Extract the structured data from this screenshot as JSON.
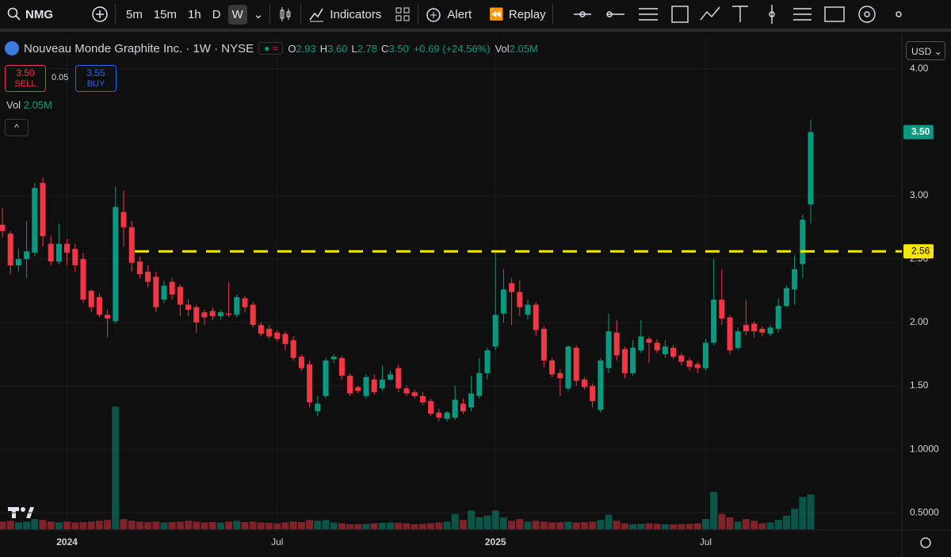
{
  "toolbar": {
    "symbol": "NMG",
    "intervals": [
      "5m",
      "15m",
      "1h",
      "D",
      "W"
    ],
    "indicators": "Indicators",
    "alert": "Alert",
    "replay": "Replay"
  },
  "header": {
    "title": "Nouveau Monde Graphite Inc. · 1W · NYSE",
    "ohlc": [
      {
        "key": "O",
        "value": "2.93"
      },
      {
        "key": "H",
        "value": "3.60"
      },
      {
        "key": "L",
        "value": "2.78"
      },
      {
        "key": "C",
        "value": "3.50"
      }
    ],
    "change": "+0.69 (+24.56%)",
    "vol_key": "Vol",
    "vol": "2.05M"
  },
  "trade": {
    "sell_price": "3.50",
    "sell": "SELL",
    "spread": "0.05",
    "buy_price": "3.55",
    "buy": "BUY"
  },
  "volume_legend": {
    "key": "Vol",
    "value": "2.05M"
  },
  "currency": "USD",
  "chart_data": {
    "type": "candlestick",
    "categories": [
      null,
      null,
      null,
      null,
      null,
      null,
      null,
      null,
      "2024",
      null,
      null,
      null,
      null,
      null,
      null,
      null,
      null,
      null,
      null,
      null,
      null,
      null,
      null,
      null,
      null,
      null,
      null,
      null,
      null,
      null,
      null,
      null,
      null,
      null,
      "Jul",
      null,
      null,
      null,
      null,
      null,
      null,
      null,
      null,
      null,
      null,
      null,
      null,
      null,
      null,
      null,
      null,
      null,
      null,
      null,
      null,
      null,
      null,
      null,
      null,
      null,
      null,
      "2025",
      null,
      null,
      null,
      null,
      null,
      null,
      null,
      null,
      null,
      null,
      null,
      null,
      null,
      null,
      null,
      null,
      null,
      null,
      null,
      null,
      null,
      null,
      null,
      null,
      null,
      "Jul",
      null,
      null,
      null,
      null,
      null,
      null,
      null,
      null,
      null,
      null,
      null,
      null,
      null
    ],
    "open": [
      2.77,
      2.7,
      2.45,
      2.5,
      2.55,
      3.1,
      2.62,
      2.48,
      2.62,
      2.58,
      2.5,
      2.25,
      2.2,
      2.06,
      2.01,
      2.87,
      2.75,
      2.48,
      2.4,
      2.36,
      2.18,
      2.32,
      2.28,
      2.14,
      2.12,
      2.08,
      2.09,
      2.05,
      2.07,
      2.06,
      2.19,
      2.14,
      1.98,
      1.95,
      1.92,
      1.91,
      1.86,
      1.73,
      1.67,
      1.3,
      1.42,
      1.71,
      1.72,
      1.58,
      1.49,
      1.42,
      1.55,
      1.48,
      1.55,
      1.64,
      1.48,
      1.45,
      1.42,
      1.38,
      1.29,
      1.24,
      1.25,
      1.36,
      1.33,
      1.42,
      1.6,
      1.81,
      2.07,
      2.31,
      2.24,
      2.06,
      2.14,
      1.95,
      1.7,
      1.6,
      1.48,
      1.8,
      1.55,
      1.5,
      1.31,
      1.64,
      1.92,
      1.79,
      1.6,
      1.78,
      1.87,
      1.84,
      1.75,
      1.8,
      1.74,
      1.7,
      1.67,
      1.64,
      1.84,
      2.18,
      2.04,
      1.8,
      1.98,
      1.99,
      1.95,
      1.91,
      1.95,
      2.13,
      2.26,
      2.46,
      2.93
    ],
    "high": [
      2.9,
      2.72,
      2.58,
      2.8,
      3.1,
      3.14,
      2.68,
      2.78,
      2.66,
      2.62,
      2.55,
      2.26,
      2.23,
      2.1,
      3.07,
      3.04,
      2.8,
      2.52,
      2.45,
      2.4,
      2.33,
      2.35,
      2.3,
      2.18,
      2.14,
      2.1,
      2.12,
      2.1,
      2.32,
      2.22,
      2.21,
      2.16,
      2.0,
      1.98,
      1.94,
      1.93,
      1.89,
      1.75,
      1.7,
      1.42,
      1.72,
      1.75,
      1.74,
      1.6,
      1.5,
      1.59,
      1.59,
      1.66,
      1.62,
      1.67,
      1.5,
      1.47,
      1.45,
      1.4,
      1.32,
      1.3,
      1.5,
      1.4,
      1.58,
      1.72,
      1.8,
      2.56,
      2.42,
      2.35,
      2.33,
      2.18,
      2.16,
      1.97,
      1.72,
      1.63,
      1.82,
      1.82,
      1.57,
      1.52,
      1.72,
      2.07,
      2.02,
      1.81,
      1.86,
      2.02,
      1.89,
      1.87,
      1.86,
      1.82,
      1.76,
      1.72,
      1.69,
      1.87,
      2.5,
      2.42,
      2.06,
      1.96,
      2.18,
      2.01,
      1.97,
      1.98,
      2.19,
      2.29,
      2.53,
      2.85,
      3.6
    ],
    "low": [
      2.67,
      2.38,
      2.4,
      2.35,
      2.52,
      2.6,
      2.45,
      2.46,
      2.45,
      2.4,
      2.15,
      2.08,
      2.04,
      1.88,
      1.99,
      2.6,
      2.4,
      2.35,
      2.28,
      2.08,
      2.15,
      2.18,
      2.05,
      2.05,
      1.92,
      1.98,
      2.02,
      2.02,
      2.04,
      2.04,
      2.08,
      1.96,
      1.89,
      1.87,
      1.85,
      1.78,
      1.7,
      1.62,
      1.33,
      1.26,
      1.4,
      1.68,
      1.55,
      1.42,
      1.44,
      1.4,
      1.43,
      1.46,
      1.54,
      1.45,
      1.42,
      1.4,
      1.35,
      1.26,
      1.22,
      1.22,
      1.23,
      1.28,
      1.3,
      1.4,
      1.55,
      1.78,
      2.0,
      1.98,
      2.05,
      2.02,
      1.9,
      1.65,
      1.57,
      1.42,
      1.46,
      1.5,
      1.47,
      1.33,
      1.29,
      1.6,
      1.7,
      1.56,
      1.58,
      1.76,
      1.68,
      1.76,
      1.72,
      1.71,
      1.66,
      1.62,
      1.6,
      1.62,
      1.82,
      1.98,
      1.75,
      1.78,
      1.9,
      1.88,
      1.89,
      1.89,
      1.92,
      2.12,
      2.14,
      2.35,
      2.78
    ],
    "close": [
      2.72,
      2.45,
      2.5,
      2.56,
      3.06,
      2.68,
      2.48,
      2.62,
      2.55,
      2.45,
      2.18,
      2.12,
      2.06,
      2.03,
      2.91,
      2.75,
      2.47,
      2.38,
      2.32,
      2.12,
      2.29,
      2.22,
      2.14,
      2.1,
      2.0,
      2.04,
      2.05,
      2.08,
      2.06,
      2.2,
      2.12,
      1.98,
      1.91,
      1.89,
      1.87,
      1.83,
      1.72,
      1.64,
      1.37,
      1.36,
      1.7,
      1.73,
      1.58,
      1.44,
      1.46,
      1.57,
      1.45,
      1.55,
      1.59,
      1.48,
      1.44,
      1.42,
      1.37,
      1.28,
      1.25,
      1.29,
      1.39,
      1.3,
      1.44,
      1.6,
      1.78,
      2.06,
      2.26,
      2.24,
      2.12,
      2.14,
      1.94,
      1.7,
      1.59,
      1.56,
      1.81,
      1.54,
      1.49,
      1.38,
      1.7,
      1.93,
      1.74,
      1.6,
      1.8,
      1.89,
      1.84,
      1.78,
      1.81,
      1.73,
      1.69,
      1.65,
      1.64,
      1.84,
      2.18,
      2.03,
      1.78,
      1.93,
      1.93,
      1.93,
      1.92,
      1.96,
      2.13,
      2.27,
      2.42,
      2.81,
      3.5
    ],
    "volume": [
      0.45,
      0.5,
      0.4,
      0.45,
      0.6,
      0.55,
      0.45,
      0.4,
      0.45,
      0.4,
      0.42,
      0.45,
      0.5,
      0.55,
      7.2,
      0.6,
      0.5,
      0.45,
      0.42,
      0.45,
      0.4,
      0.42,
      0.45,
      0.5,
      0.45,
      0.4,
      0.42,
      0.38,
      0.45,
      0.5,
      0.42,
      0.45,
      0.4,
      0.38,
      0.35,
      0.4,
      0.45,
      0.42,
      0.55,
      0.5,
      0.55,
      0.4,
      0.35,
      0.3,
      0.3,
      0.32,
      0.35,
      0.38,
      0.4,
      0.38,
      0.35,
      0.3,
      0.32,
      0.35,
      0.4,
      0.45,
      0.9,
      0.55,
      1.1,
      0.7,
      0.8,
      1.1,
      0.7,
      0.5,
      0.6,
      0.45,
      0.5,
      0.45,
      0.4,
      0.42,
      0.45,
      0.4,
      0.42,
      0.45,
      0.55,
      0.85,
      0.5,
      0.35,
      0.3,
      0.32,
      0.35,
      0.32,
      0.3,
      0.28,
      0.3,
      0.32,
      0.35,
      0.6,
      2.2,
      0.9,
      0.7,
      0.45,
      0.6,
      0.5,
      0.35,
      0.4,
      0.55,
      0.8,
      1.2,
      1.9,
      2.05
    ],
    "up_color": "#089981",
    "down_color": "#f23645",
    "ylim": [
      0.37,
      4.26
    ],
    "yticks": [
      {
        "value": 0.5,
        "label": "0.5000"
      },
      {
        "value": 1,
        "label": "1.0000"
      },
      {
        "value": 1.5,
        "label": "1.50"
      },
      {
        "value": 2,
        "label": "2.00"
      },
      {
        "value": 2.5,
        "label": "2.50"
      },
      {
        "value": 3,
        "label": "3.00"
      },
      {
        "value": 4,
        "label": "4.00"
      }
    ],
    "volume_lim": [
      0,
      29
    ],
    "grid": true,
    "last_price": {
      "value": 3.5,
      "label": "3.50"
    },
    "level": {
      "value": 2.56,
      "label": "2.56",
      "color": "#f7e600"
    }
  }
}
